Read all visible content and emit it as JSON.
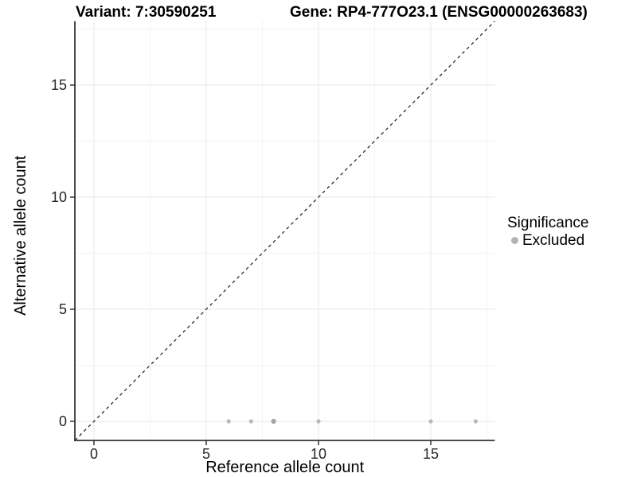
{
  "header": {
    "variant_title": "Variant: 7:30590251",
    "gene_title": "Gene: RP4-777O23.1 (ENSG00000263683)"
  },
  "chart_data": {
    "type": "scatter",
    "title": "Variant: 7:30590251 — Gene: RP4-777O23.1 (ENSG00000263683)",
    "xlabel": "Reference allele count",
    "ylabel": "Alternative allele count",
    "xlim": [
      -0.85,
      17.85
    ],
    "ylim": [
      -0.85,
      17.85
    ],
    "xticks": [
      0,
      5,
      10,
      15
    ],
    "yticks": [
      0,
      5,
      10,
      15
    ],
    "xticks_minor": [
      2.5,
      7.5,
      12.5,
      17.5
    ],
    "yticks_minor": [
      2.5,
      7.5,
      12.5,
      17.5
    ],
    "grid": {
      "major_color": "#e7e7e7",
      "minor_color": "#f3f3f3"
    },
    "axis_color": "#333333",
    "identity_line": {
      "slope": 1,
      "intercept": 0,
      "style": "dashed",
      "color": "#1a1a1a"
    },
    "points": [
      {
        "x": 6,
        "y": 0,
        "n": 1
      },
      {
        "x": 7,
        "y": 0,
        "n": 1
      },
      {
        "x": 8,
        "y": 0,
        "n": 2
      },
      {
        "x": 10,
        "y": 0,
        "n": 1
      },
      {
        "x": 15,
        "y": 0,
        "n": 1
      },
      {
        "x": 17,
        "y": 0,
        "n": 1
      }
    ],
    "point_color": "#b9b9b9",
    "point_color_overplot": "#a3a3a3",
    "legend": {
      "title": "Significance",
      "items": [
        {
          "label": "Excluded",
          "color": "#b3b3b3"
        }
      ]
    }
  }
}
